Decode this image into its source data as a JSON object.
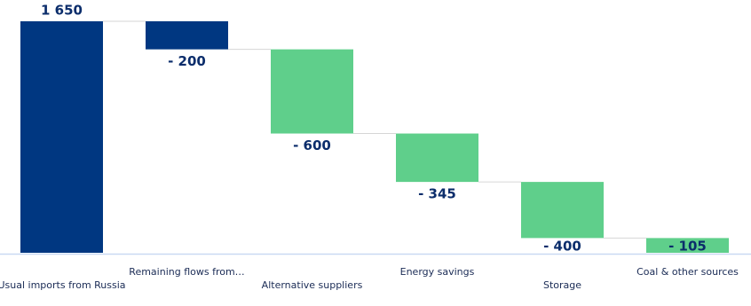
{
  "chart_data": {
    "type": "waterfall",
    "categories": [
      "Usual imports from Russia",
      "Remaining flows from…",
      "Alternative suppliers",
      "Energy savings",
      "Storage",
      "Coal & other sources"
    ],
    "values": [
      1650,
      -200,
      -600,
      -345,
      -400,
      -105
    ],
    "value_labels": [
      "1 650",
      "- 200",
      "- 600",
      "- 345",
      "- 400",
      "- 105"
    ],
    "colors": [
      "#003781",
      "#003781",
      "#5fcf8b",
      "#5fcf8b",
      "#5fcf8b",
      "#5fcf8b"
    ],
    "ylim": [
      0,
      1650
    ]
  }
}
